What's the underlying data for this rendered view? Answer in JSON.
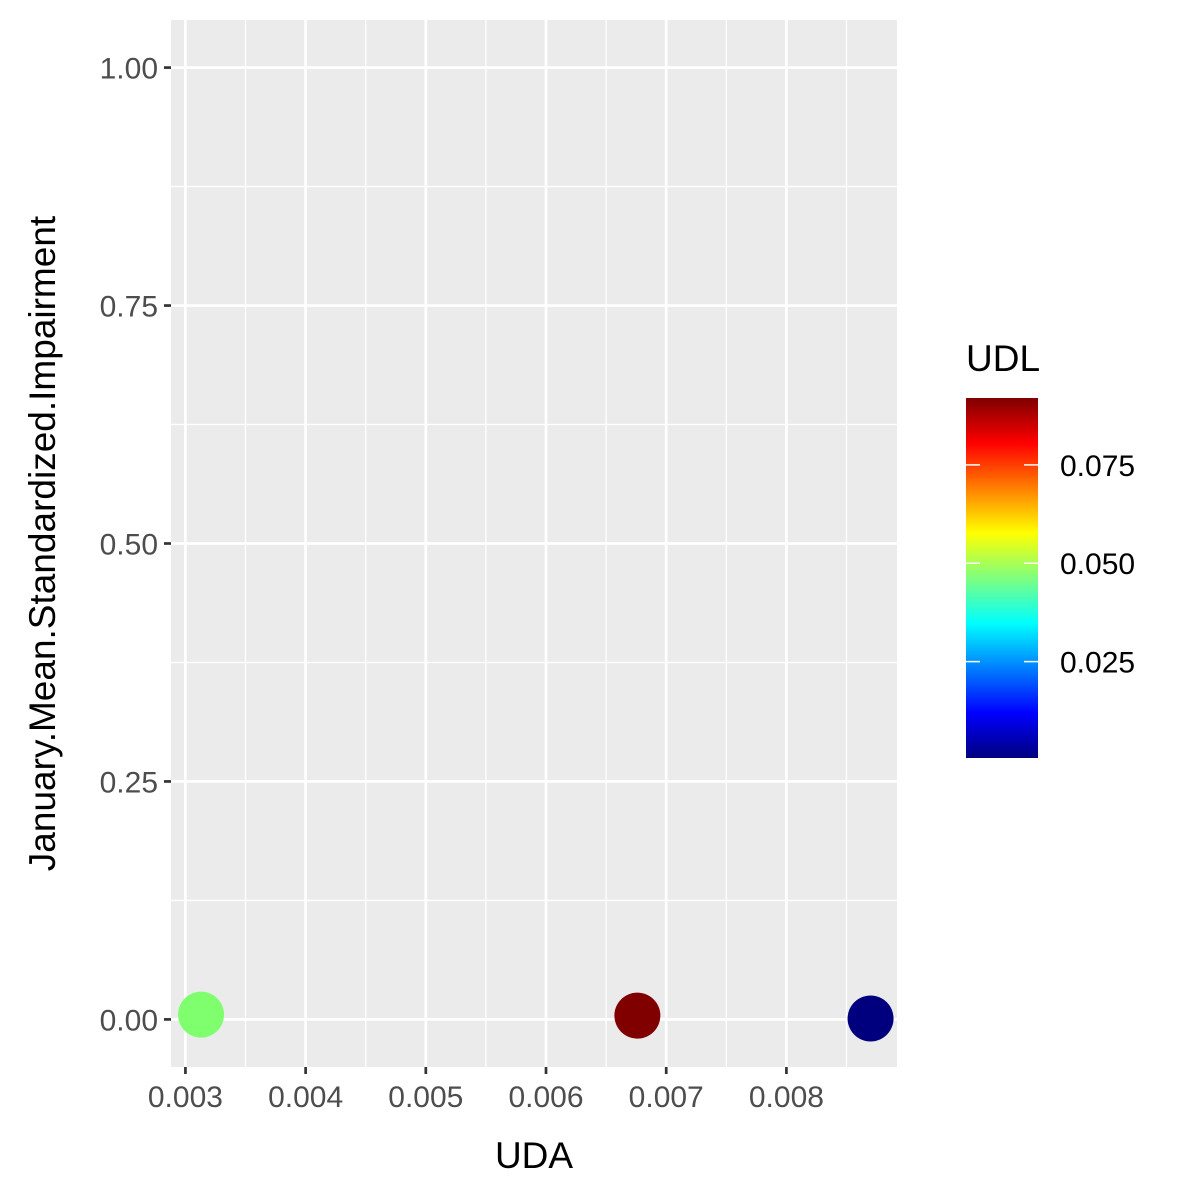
{
  "chart_data": {
    "type": "scatter",
    "xlabel": "UDA",
    "ylabel": "January.Mean.Standardized.Impairment",
    "xlim": [
      0.00288,
      0.00892
    ],
    "ylim": [
      -0.05,
      1.05
    ],
    "x_ticks": [
      0.003,
      0.004,
      0.005,
      0.006,
      0.007,
      0.008
    ],
    "x_tick_labels": [
      "0.003",
      "0.004",
      "0.005",
      "0.006",
      "0.007",
      "0.008"
    ],
    "y_ticks": [
      0.0,
      0.25,
      0.5,
      0.75,
      1.0
    ],
    "y_tick_labels": [
      "0.00",
      "0.25",
      "0.50",
      "0.75",
      "1.00"
    ],
    "grid": true,
    "panel_background": "#ebebeb",
    "grid_color": "#ffffff",
    "points": [
      {
        "x": 0.00313,
        "y": 0.005,
        "udl": 0.044,
        "color": "#80ff6e"
      },
      {
        "x": 0.00676,
        "y": 0.004,
        "udl": 0.092,
        "color": "#800000"
      },
      {
        "x": 0.0087,
        "y": 0.001,
        "udl": 0.0005,
        "color": "#00007f"
      }
    ],
    "legend": {
      "title": "UDL",
      "position": "right",
      "type": "colorbar",
      "range": [
        0.0005,
        0.092
      ],
      "ticks": [
        0.025,
        0.05,
        0.075
      ],
      "tick_labels": [
        "0.025",
        "0.050",
        "0.075"
      ],
      "colormap": [
        "#00007f",
        "#0000ff",
        "#007fff",
        "#00ffff",
        "#7fff7f",
        "#ffff00",
        "#ff7f00",
        "#ff0000",
        "#7f0000"
      ]
    }
  }
}
